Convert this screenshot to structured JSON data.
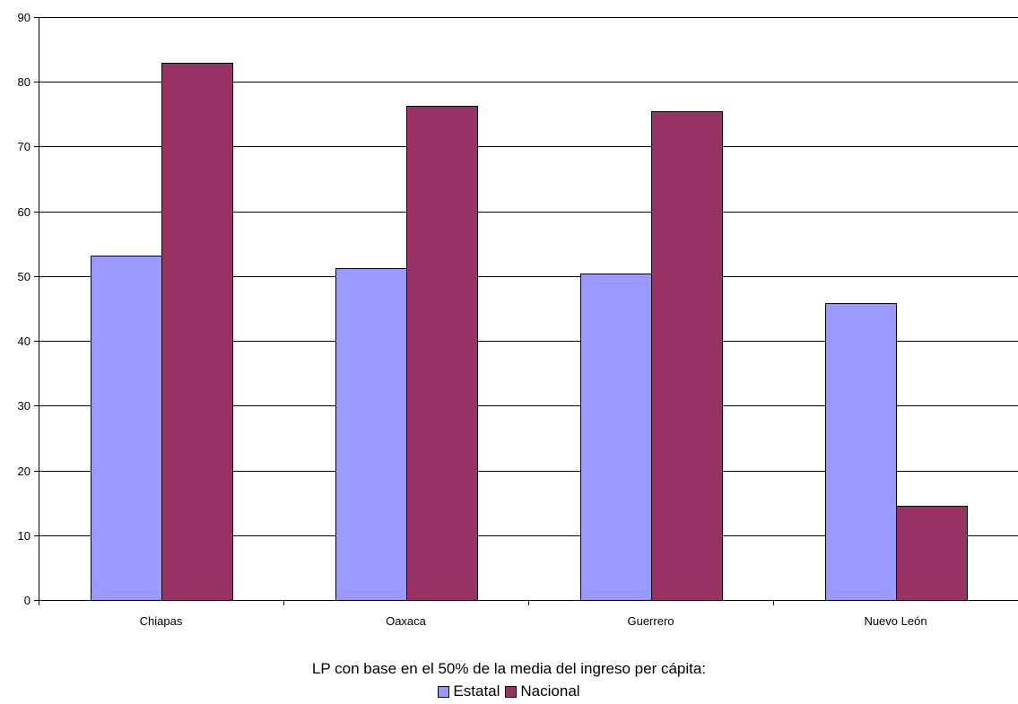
{
  "chart_data": {
    "type": "bar",
    "categories": [
      "Chiapas",
      "Oaxaca",
      "Guerrero",
      "Nuevo León"
    ],
    "series": [
      {
        "name": "Estatal",
        "values": [
          53.2,
          51.2,
          50.4,
          45.8
        ],
        "color": "#9999FF"
      },
      {
        "name": "Nacional",
        "values": [
          82.9,
          76.3,
          75.5,
          14.5
        ],
        "color": "#993366"
      }
    ],
    "ylim": [
      0,
      90
    ],
    "yticks": [
      "0",
      "10",
      "20",
      "30",
      "40",
      "50",
      "60",
      "70",
      "80",
      "90"
    ],
    "grid": true,
    "legend_title": "LP con base en el 50% de la media del ingreso per cápita:",
    "legend_position": "bottom"
  }
}
